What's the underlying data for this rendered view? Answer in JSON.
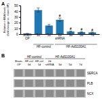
{
  "chart_data": [
    {
      "type": "bar",
      "title": "A",
      "categories": [
        "Sham-\nOP",
        "3d",
        "5d",
        "2d\nshRNA",
        "3d",
        "5d",
        "7d"
      ],
      "values": [
        1.0,
        42.0,
        15.0,
        25.0,
        4.5,
        3.5,
        3.0
      ],
      "errors": [
        0.3,
        3.5,
        2.0,
        3.0,
        0.8,
        0.6,
        0.5
      ],
      "annotations": [
        null,
        null,
        null,
        "#",
        "#",
        "#",
        "#"
      ],
      "groups": [
        null,
        "HF-control",
        "HF-control",
        "HF-AdS100A1",
        "HF-AdS100A1",
        "HF-AdS100A1",
        "HF-AdS100A1"
      ],
      "ylabel": "Relative mRNA levels\n(fold change vs. sham-OP)",
      "ylim": [
        0,
        50
      ],
      "yticks": [
        0,
        10,
        20,
        30,
        40,
        50
      ],
      "grid": false
    },
    {
      "type": "blot",
      "title": "B",
      "categories": [
        "Sham-\nOP",
        "HF-ctrl\n3d",
        "HF-ctrl\n5d",
        "2d\nshRNA",
        "3d",
        "5d",
        "7d"
      ],
      "groups": [
        null,
        "HF-control",
        "HF-control",
        "HF-AdS100A1",
        "HF-AdS100A1",
        "HF-AdS100A1",
        "HF-AdS100A1"
      ],
      "series": [
        {
          "name": "SERCA"
        },
        {
          "name": "PLB"
        },
        {
          "name": "NCX"
        }
      ],
      "color": "#8c8c8c"
    }
  ]
}
